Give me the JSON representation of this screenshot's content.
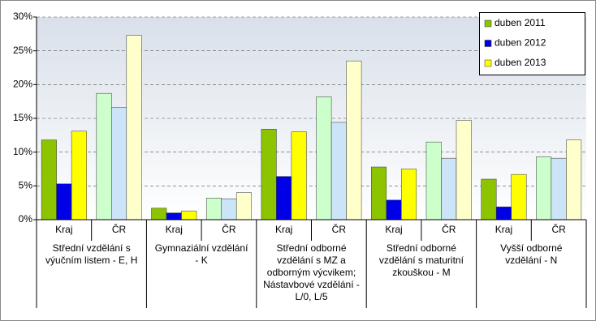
{
  "chart_data": {
    "type": "bar",
    "categories": [
      "Kraj",
      "ČR",
      "Kraj",
      "ČR",
      "Kraj",
      "ČR",
      "Kraj",
      "ČR",
      "Kraj",
      "ČR"
    ],
    "groups": [
      "Střední vzdělání s výučním listem - E, H",
      "Gymnaziální vzdělání - K",
      "Střední odborné vzdělání s MZ a odborným výcvikem; Nástavbové vzdělání - L/0, L/5",
      "Střední odborné vzdělání s maturitní zkouškou - M",
      "Vyšší odborné vzdělání - N"
    ],
    "series": [
      {
        "name": "duben 2011",
        "color": "#8cc400",
        "colors": [
          "#8cc400",
          "#ccffcc",
          "#8cc400",
          "#ccffcc",
          "#8cc400",
          "#ccffcc",
          "#8cc400",
          "#ccffcc",
          "#8cc400",
          "#ccffcc"
        ],
        "values": [
          11.8,
          18.7,
          1.7,
          3.2,
          13.4,
          18.2,
          7.8,
          11.5,
          6.0,
          9.3
        ]
      },
      {
        "name": "duben 2012",
        "color": "#0000e6",
        "colors": [
          "#0000e6",
          "#cce4f7",
          "#0000e6",
          "#cce4f7",
          "#0000e6",
          "#cce4f7",
          "#0000e6",
          "#cce4f7",
          "#0000e6",
          "#cce4f7"
        ],
        "values": [
          5.3,
          16.6,
          1.0,
          3.1,
          6.4,
          14.4,
          2.9,
          9.1,
          1.9,
          9.1
        ]
      },
      {
        "name": "duben 2013",
        "color": "#ffff00",
        "colors": [
          "#ffff00",
          "#ffffcc",
          "#ffff00",
          "#ffffcc",
          "#ffff00",
          "#ffffcc",
          "#ffff00",
          "#ffffcc",
          "#ffff00",
          "#ffffcc"
        ],
        "values": [
          13.1,
          27.3,
          1.3,
          4.0,
          13.0,
          23.5,
          7.5,
          14.7,
          6.7,
          11.8
        ]
      }
    ],
    "ylim": [
      0,
      30
    ],
    "yticks": [
      {
        "value": 0,
        "label": "0%"
      },
      {
        "value": 5,
        "label": "5%"
      },
      {
        "value": 10,
        "label": "10%"
      },
      {
        "value": 15,
        "label": "15%"
      },
      {
        "value": 20,
        "label": "20%"
      },
      {
        "value": 25,
        "label": "25%"
      },
      {
        "value": 30,
        "label": "30%"
      }
    ],
    "grid": true,
    "legend": "top-right"
  }
}
